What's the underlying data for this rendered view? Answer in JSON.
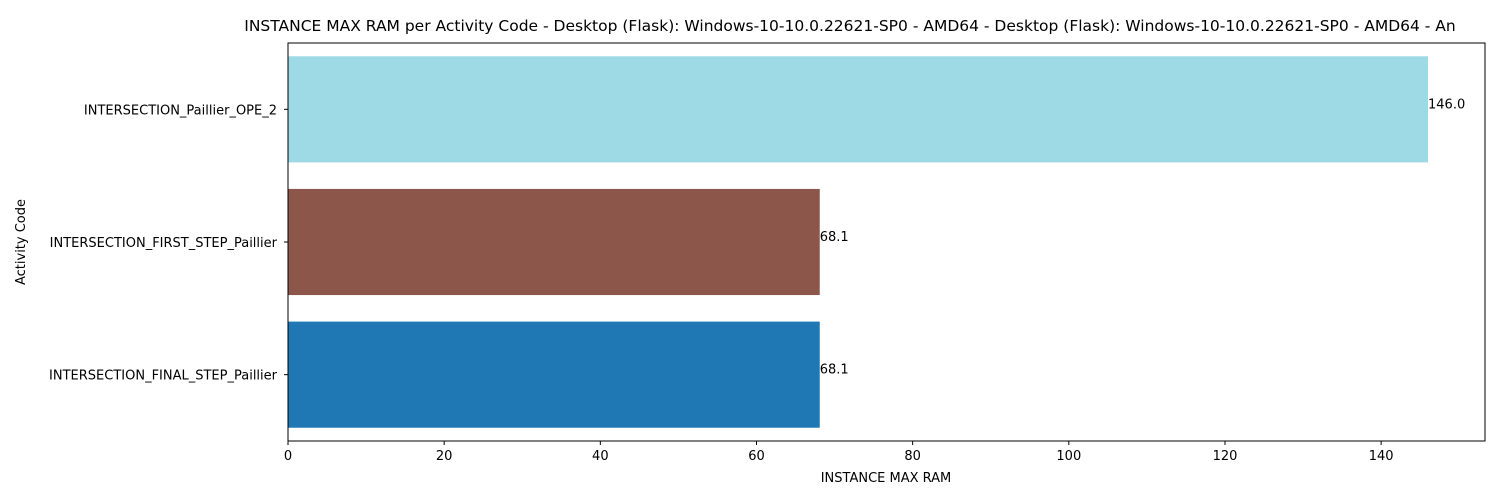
{
  "chart_data": {
    "type": "bar",
    "orientation": "horizontal",
    "title": "INSTANCE MAX RAM per Activity Code - Desktop (Flask): Windows-10-10.0.22621-SP0 - AMD64 - Desktop (Flask): Windows-10-10.0.22621-SP0 - AMD64 - An",
    "xlabel": "INSTANCE MAX RAM",
    "ylabel": "Activity Code",
    "categories": [
      "INTERSECTION_FINAL_STEP_Paillier",
      "INTERSECTION_FIRST_STEP_Paillier",
      "INTERSECTION_Paillier_OPE_2"
    ],
    "values": [
      68.1,
      68.1,
      146.0
    ],
    "value_labels": [
      "68.1",
      "68.1",
      "146.0"
    ],
    "colors": [
      "#1f77b4",
      "#8c564b",
      "#9edae5"
    ],
    "xlim": [
      0,
      153.3
    ],
    "xticks": [
      0,
      20,
      40,
      60,
      80,
      100,
      120,
      140
    ],
    "grid": false,
    "legend": "none"
  }
}
